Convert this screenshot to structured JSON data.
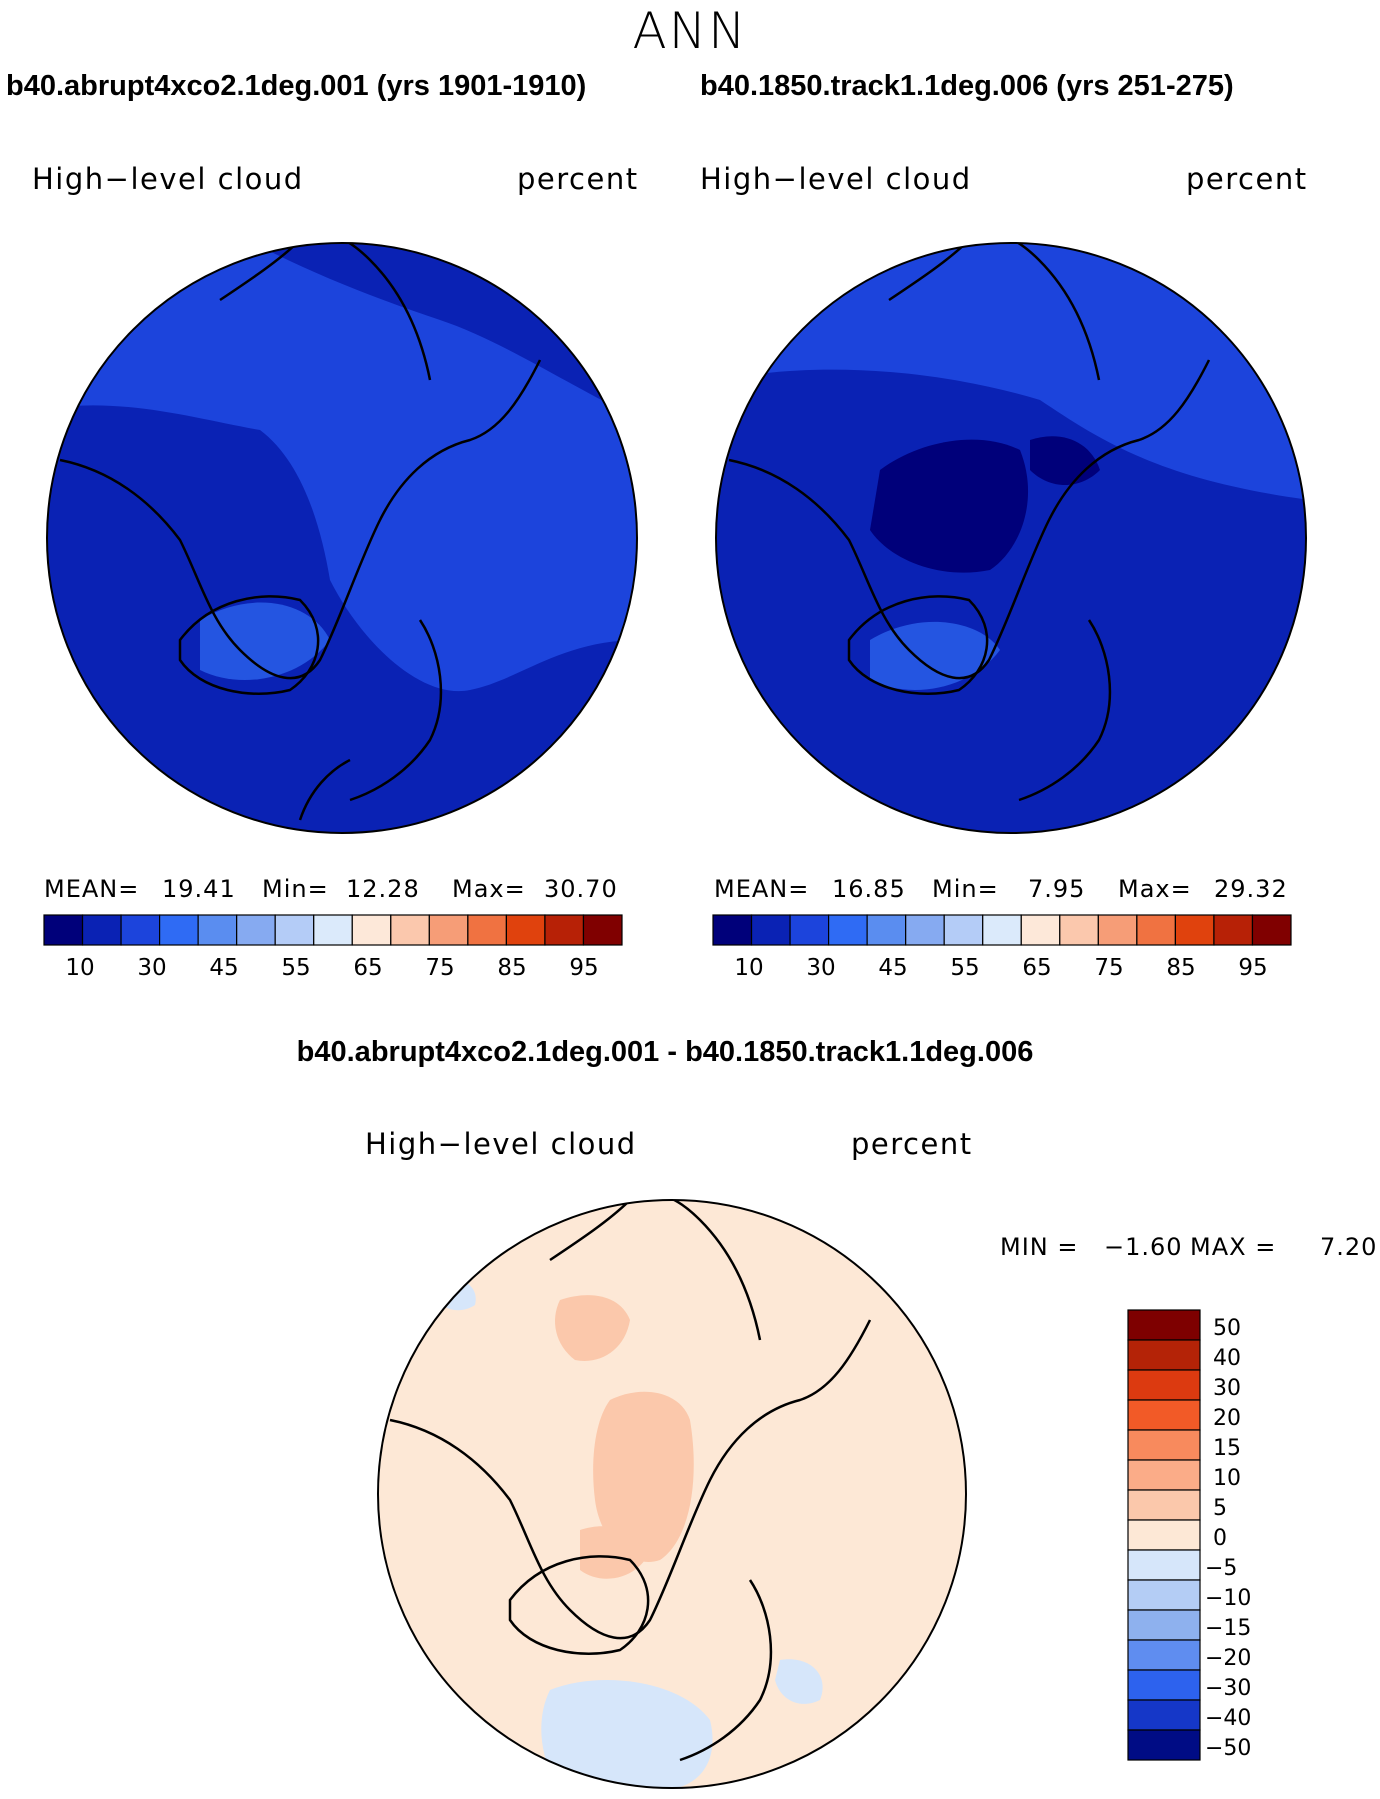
{
  "title": "ANN",
  "panels": [
    {
      "run_title": "b40.abrupt4xco2.1deg.001 (yrs 1901-1910)",
      "variable": "High−level cloud",
      "units": "percent",
      "mean_label": "MEAN=",
      "mean": "19.41",
      "min_label": "Min=",
      "min": "12.28",
      "max_label": "Max=",
      "max": "30.70"
    },
    {
      "run_title": "b40.1850.track1.1deg.006 (yrs 251-275)",
      "variable": "High−level cloud",
      "units": "percent",
      "mean_label": "MEAN=",
      "mean": "16.85",
      "min_label": "Min=",
      "min": "7.95",
      "max_label": "Max=",
      "max": "29.32"
    }
  ],
  "colorbar": {
    "ticks": [
      "10",
      "30",
      "45",
      "55",
      "65",
      "75",
      "85",
      "95"
    ],
    "colors": [
      "#00007a",
      "#0a22b4",
      "#1c44dc",
      "#2f6bf4",
      "#5a8df0",
      "#86aaf1",
      "#b4ccf7",
      "#dbeafb",
      "#fde8d9",
      "#fbc8ad",
      "#f69d77",
      "#f07241",
      "#e0420d",
      "#b72106",
      "#800000"
    ]
  },
  "difference": {
    "title": "b40.abrupt4xco2.1deg.001 - b40.1850.track1.1deg.006",
    "variable": "High−level cloud",
    "units": "percent",
    "min_label": "MIN =",
    "min": "−1.60",
    "max_label": "MAX =",
    "max": "7.20",
    "legend_labels": [
      "50",
      "40",
      "30",
      "20",
      "15",
      "10",
      "5",
      "0",
      "−5",
      "−10",
      "−15",
      "−20",
      "−30",
      "−40",
      "−50"
    ],
    "legend_colors": [
      "#7e0000",
      "#b42307",
      "#dc3a10",
      "#f25a27",
      "#f88a5d",
      "#fbac88",
      "#fbc8ab",
      "#fde8d6",
      "#d6e6fa",
      "#b4cdf5",
      "#8eb1ee",
      "#5f8df0",
      "#2d62ee",
      "#1537c8",
      "#000c85"
    ]
  },
  "chart_data": [
    {
      "type": "heatmap",
      "title": "b40.abrupt4xco2.1deg.001 (yrs 1901-1910)",
      "subtitle": "High-level cloud",
      "units": "percent",
      "projection": "north polar stereographic",
      "mean": 19.41,
      "min": 12.28,
      "max": 30.7,
      "levels": [
        10,
        15,
        20,
        25,
        30,
        35,
        40,
        45,
        50,
        55,
        60,
        65,
        70,
        75,
        80,
        85,
        90,
        95
      ]
    },
    {
      "type": "heatmap",
      "title": "b40.1850.track1.1deg.006 (yrs 251-275)",
      "subtitle": "High-level cloud",
      "units": "percent",
      "projection": "north polar stereographic",
      "mean": 16.85,
      "min": 7.95,
      "max": 29.32,
      "levels": [
        10,
        15,
        20,
        25,
        30,
        35,
        40,
        45,
        50,
        55,
        60,
        65,
        70,
        75,
        80,
        85,
        90,
        95
      ]
    },
    {
      "type": "heatmap",
      "title": "b40.abrupt4xco2.1deg.001 - b40.1850.track1.1deg.006",
      "subtitle": "High-level cloud",
      "units": "percent",
      "projection": "north polar stereographic",
      "min": -1.6,
      "max": 7.2,
      "levels": [
        -50,
        -40,
        -30,
        -20,
        -15,
        -10,
        -5,
        0,
        5,
        10,
        15,
        20,
        30,
        40,
        50
      ]
    }
  ]
}
